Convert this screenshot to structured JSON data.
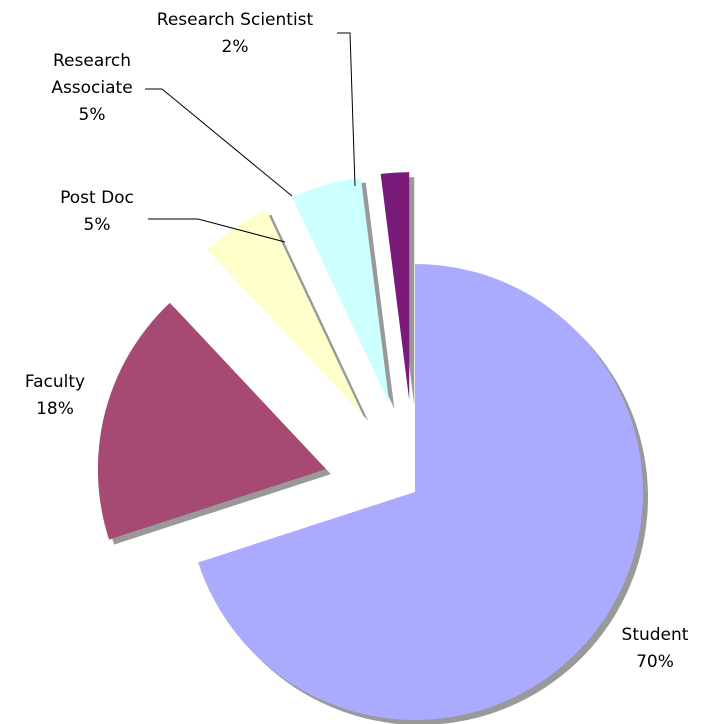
{
  "chart_data": {
    "type": "pie",
    "categories": [
      "Student",
      "Faculty",
      "Post Doc",
      "Research Associate",
      "Research Scientist"
    ],
    "values": [
      70,
      18,
      5,
      5,
      2
    ],
    "value_labels": [
      "70%",
      "18%",
      "5%",
      "5%",
      "2%"
    ],
    "colors": [
      "#aaaaff",
      "#a64a73",
      "#ffffcc",
      "#ccffff",
      "#7a1a7a"
    ]
  }
}
